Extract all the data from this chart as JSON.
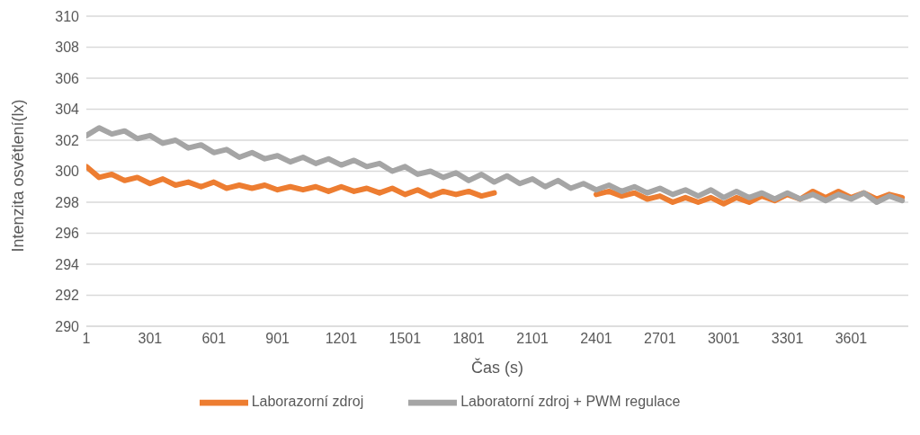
{
  "chart_data": {
    "type": "line",
    "xlabel": "Čas (s)",
    "ylabel": "Intenzita osvětlení(lx)",
    "x": [
      1,
      61,
      121,
      181,
      241,
      301,
      361,
      421,
      481,
      541,
      601,
      661,
      721,
      781,
      841,
      901,
      961,
      1021,
      1081,
      1141,
      1201,
      1261,
      1321,
      1381,
      1441,
      1501,
      1561,
      1621,
      1681,
      1741,
      1801,
      1861,
      1921,
      1981,
      2041,
      2101,
      2161,
      2221,
      2281,
      2341,
      2401,
      2461,
      2521,
      2581,
      2641,
      2701,
      2761,
      2821,
      2881,
      2941,
      3001,
      3061,
      3121,
      3181,
      3241,
      3301,
      3361,
      3421,
      3481,
      3541,
      3601,
      3661,
      3721,
      3781,
      3841
    ],
    "series": [
      {
        "name": "Laborazorní zdroj",
        "color": "#ed7d31",
        "values": [
          300.3,
          299.6,
          299.8,
          299.4,
          299.6,
          299.2,
          299.5,
          299.1,
          299.3,
          299.0,
          299.3,
          298.9,
          299.1,
          298.9,
          299.1,
          298.8,
          299.0,
          298.8,
          299.0,
          298.7,
          299.0,
          298.7,
          298.9,
          298.6,
          298.9,
          298.5,
          298.8,
          298.4,
          298.7,
          298.5,
          298.7,
          298.4,
          298.6,
          null,
          null,
          null,
          null,
          null,
          null,
          null,
          298.5,
          298.7,
          298.4,
          298.6,
          298.2,
          298.4,
          298.0,
          298.3,
          298.0,
          298.3,
          297.9,
          298.3,
          298.0,
          298.4,
          298.1,
          298.5,
          298.2,
          298.7,
          298.3,
          298.7,
          298.3,
          298.6,
          298.2,
          298.5,
          298.3
        ]
      },
      {
        "name": "Laboratorní zdroj + PWM regulace",
        "color": "#a5a5a5",
        "values": [
          302.3,
          302.8,
          302.4,
          302.6,
          302.1,
          302.3,
          301.8,
          302.0,
          301.5,
          301.7,
          301.2,
          301.4,
          300.9,
          301.2,
          300.8,
          301.0,
          300.6,
          300.9,
          300.5,
          300.8,
          300.4,
          300.7,
          300.3,
          300.5,
          300.0,
          300.3,
          299.8,
          300.0,
          299.6,
          299.9,
          299.4,
          299.8,
          299.3,
          299.7,
          299.2,
          299.5,
          299.0,
          299.4,
          298.9,
          299.2,
          298.8,
          299.1,
          298.7,
          299.0,
          298.6,
          298.9,
          298.5,
          298.8,
          298.4,
          298.8,
          298.3,
          298.7,
          298.3,
          298.6,
          298.2,
          298.6,
          298.2,
          298.5,
          298.1,
          298.5,
          298.2,
          298.6,
          298.0,
          298.4,
          298.1
        ]
      }
    ],
    "xlim": [
      1,
      3870
    ],
    "xticks": [
      1,
      301,
      601,
      901,
      1201,
      1501,
      1801,
      2101,
      2401,
      2701,
      3001,
      3301,
      3601
    ],
    "ylim": [
      290,
      310
    ],
    "yticks": [
      290,
      292,
      294,
      296,
      298,
      300,
      302,
      304,
      306,
      308,
      310
    ],
    "grid": "y",
    "legend": "bottom",
    "marker": "none",
    "line_style": "solid"
  }
}
